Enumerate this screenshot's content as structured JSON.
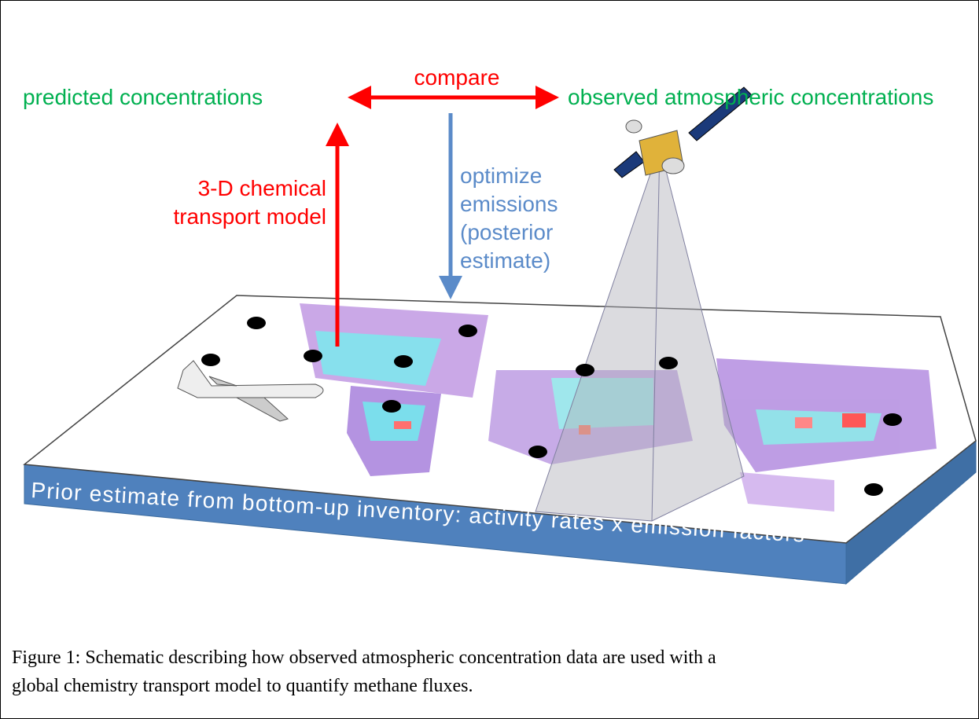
{
  "labels": {
    "predicted": "predicted concentrations",
    "compare": "compare",
    "observed": "observed atmospheric concentrations",
    "model": [
      "3-D chemical",
      "transport model"
    ],
    "optimize": [
      "optimize",
      "emissions",
      "(posterior",
      "estimate)"
    ],
    "prior": "Prior estimate from bottom-up inventory: activity rates x emission factors"
  },
  "caption": [
    "Figure 1: Schematic describing how observed atmospheric concentration data are used with a",
    "global chemistry transport model to quantify methane fluxes."
  ]
}
